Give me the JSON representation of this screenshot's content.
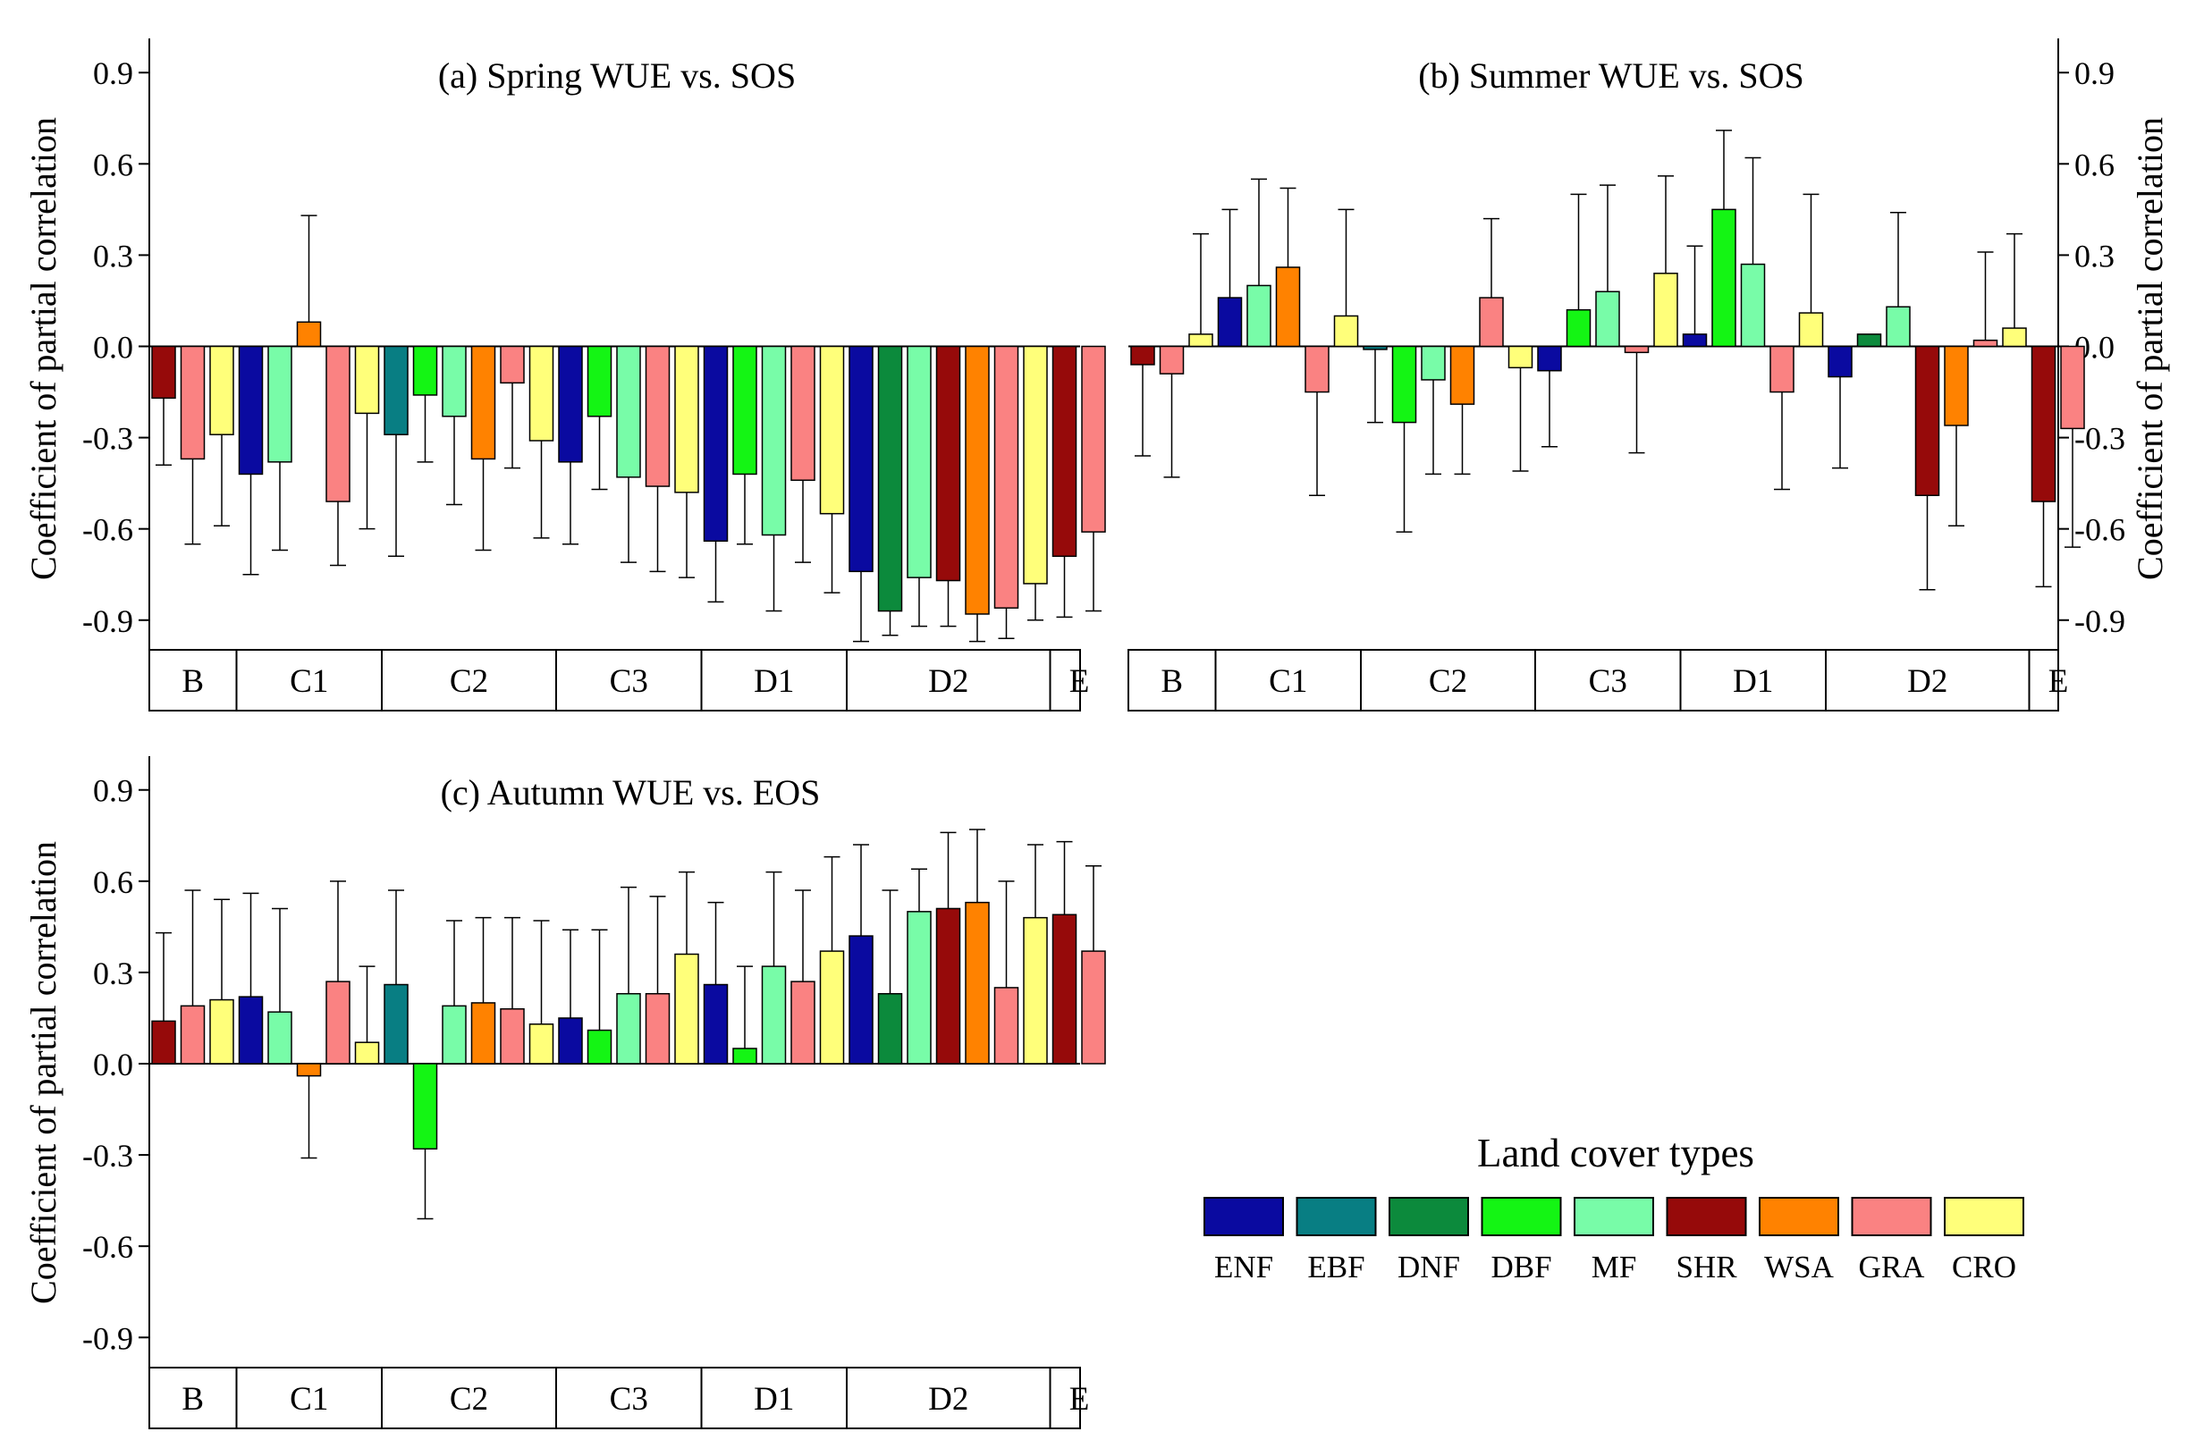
{
  "colors": {
    "ENF": "#0A0AA0",
    "EBF": "#087E83",
    "DNF": "#0C8A3C",
    "DBF": "#14F514",
    "MF": "#78FCA8",
    "SHR": "#960A0A",
    "WSA": "#FF8200",
    "GRA": "#FA8282",
    "CRO": "#FFFF7A"
  },
  "legend": {
    "title": "Land cover types",
    "items": [
      "ENF",
      "EBF",
      "DNF",
      "DBF",
      "MF",
      "SHR",
      "WSA",
      "GRA",
      "CRO"
    ]
  },
  "chart_data": [
    {
      "type": "bar",
      "title": "(a) Spring WUE vs. SOS",
      "ylabel": "Coefficient of partial correlation",
      "ylim": [
        -1.0,
        1.0
      ],
      "yticks": [
        "0.9",
        "0.6",
        "0.3",
        "0.0",
        "-0.3",
        "-0.6",
        "-0.9"
      ],
      "ytick_values": [
        0.9,
        0.6,
        0.3,
        0.0,
        -0.3,
        -0.6,
        -0.9
      ],
      "yaxis_side": "left",
      "groups": [
        {
          "label": "B",
          "bars": [
            {
              "type": "SHR",
              "value": -0.17,
              "err": 0.22
            },
            {
              "type": "GRA",
              "value": -0.37,
              "err": 0.28
            },
            {
              "type": "CRO",
              "value": -0.29,
              "err": 0.3
            }
          ]
        },
        {
          "label": "C1",
          "bars": [
            {
              "type": "ENF",
              "value": -0.42,
              "err": 0.33
            },
            {
              "type": "MF",
              "value": -0.38,
              "err": 0.29
            },
            {
              "type": "WSA",
              "value": 0.08,
              "err": 0.35
            },
            {
              "type": "GRA",
              "value": -0.51,
              "err": 0.21
            },
            {
              "type": "CRO",
              "value": -0.22,
              "err": 0.38
            }
          ]
        },
        {
          "label": "C2",
          "bars": [
            {
              "type": "EBF",
              "value": -0.29,
              "err": 0.4
            },
            {
              "type": "DBF",
              "value": -0.16,
              "err": 0.22
            },
            {
              "type": "MF",
              "value": -0.23,
              "err": 0.29
            },
            {
              "type": "WSA",
              "value": -0.37,
              "err": 0.3
            },
            {
              "type": "GRA",
              "value": -0.12,
              "err": 0.28
            },
            {
              "type": "CRO",
              "value": -0.31,
              "err": 0.32
            }
          ]
        },
        {
          "label": "C3",
          "bars": [
            {
              "type": "ENF",
              "value": -0.38,
              "err": 0.27
            },
            {
              "type": "DBF",
              "value": -0.23,
              "err": 0.24
            },
            {
              "type": "MF",
              "value": -0.43,
              "err": 0.28
            },
            {
              "type": "GRA",
              "value": -0.46,
              "err": 0.28
            },
            {
              "type": "CRO",
              "value": -0.48,
              "err": 0.28
            }
          ]
        },
        {
          "label": "D1",
          "bars": [
            {
              "type": "ENF",
              "value": -0.64,
              "err": 0.2
            },
            {
              "type": "DBF",
              "value": -0.42,
              "err": 0.23
            },
            {
              "type": "MF",
              "value": -0.62,
              "err": 0.25
            },
            {
              "type": "GRA",
              "value": -0.44,
              "err": 0.27
            },
            {
              "type": "CRO",
              "value": -0.55,
              "err": 0.26
            }
          ]
        },
        {
          "label": "D2",
          "bars": [
            {
              "type": "ENF",
              "value": -0.74,
              "err": 0.23
            },
            {
              "type": "DNF",
              "value": -0.87,
              "err": 0.08
            },
            {
              "type": "MF",
              "value": -0.76,
              "err": 0.16
            },
            {
              "type": "SHR",
              "value": -0.77,
              "err": 0.15
            },
            {
              "type": "WSA",
              "value": -0.88,
              "err": 0.09
            },
            {
              "type": "GRA",
              "value": -0.86,
              "err": 0.1
            },
            {
              "type": "CRO",
              "value": -0.78,
              "err": 0.12
            }
          ]
        },
        {
          "label": "E",
          "bars": [
            {
              "type": "SHR",
              "value": -0.69,
              "err": 0.2
            },
            {
              "type": "GRA",
              "value": -0.61,
              "err": 0.26
            }
          ]
        }
      ]
    },
    {
      "type": "bar",
      "title": "(b) Summer WUE vs. SOS",
      "ylabel": "Coefficient of partial correlation",
      "ylim": [
        -1.0,
        1.0
      ],
      "yticks": [
        "0.9",
        "0.6",
        "0.3",
        "0.0",
        "-0.3",
        "-0.6",
        "-0.9"
      ],
      "ytick_values": [
        0.9,
        0.6,
        0.3,
        0.0,
        -0.3,
        -0.6,
        -0.9
      ],
      "yaxis_side": "right",
      "groups": [
        {
          "label": "B",
          "bars": [
            {
              "type": "SHR",
              "value": -0.06,
              "err": 0.3
            },
            {
              "type": "GRA",
              "value": -0.09,
              "err": 0.34
            },
            {
              "type": "CRO",
              "value": 0.04,
              "err": 0.33
            }
          ]
        },
        {
          "label": "C1",
          "bars": [
            {
              "type": "ENF",
              "value": 0.16,
              "err": 0.29
            },
            {
              "type": "MF",
              "value": 0.2,
              "err": 0.35
            },
            {
              "type": "WSA",
              "value": 0.26,
              "err": 0.26
            },
            {
              "type": "GRA",
              "value": -0.15,
              "err": 0.34
            },
            {
              "type": "CRO",
              "value": 0.1,
              "err": 0.35
            }
          ]
        },
        {
          "label": "C2",
          "bars": [
            {
              "type": "EBF",
              "value": -0.01,
              "err": 0.24
            },
            {
              "type": "DBF",
              "value": -0.25,
              "err": 0.36
            },
            {
              "type": "MF",
              "value": -0.11,
              "err": 0.31
            },
            {
              "type": "WSA",
              "value": -0.19,
              "err": 0.23
            },
            {
              "type": "GRA",
              "value": 0.16,
              "err": 0.26
            },
            {
              "type": "CRO",
              "value": -0.07,
              "err": 0.34
            }
          ]
        },
        {
          "label": "C3",
          "bars": [
            {
              "type": "ENF",
              "value": -0.08,
              "err": 0.25
            },
            {
              "type": "DBF",
              "value": 0.12,
              "err": 0.38
            },
            {
              "type": "MF",
              "value": 0.18,
              "err": 0.35
            },
            {
              "type": "GRA",
              "value": -0.02,
              "err": 0.33
            },
            {
              "type": "CRO",
              "value": 0.24,
              "err": 0.32
            }
          ]
        },
        {
          "label": "D1",
          "bars": [
            {
              "type": "ENF",
              "value": 0.04,
              "err": 0.29
            },
            {
              "type": "DBF",
              "value": 0.45,
              "err": 0.26
            },
            {
              "type": "MF",
              "value": 0.27,
              "err": 0.35
            },
            {
              "type": "GRA",
              "value": -0.15,
              "err": 0.32
            },
            {
              "type": "CRO",
              "value": 0.11,
              "err": 0.39
            }
          ]
        },
        {
          "label": "D2",
          "bars": [
            {
              "type": "ENF",
              "value": -0.1,
              "err": 0.3
            },
            {
              "type": "DNF",
              "value": 0.04,
              "err": 0.0
            },
            {
              "type": "MF",
              "value": 0.13,
              "err": 0.31
            },
            {
              "type": "SHR",
              "value": -0.49,
              "err": 0.31
            },
            {
              "type": "WSA",
              "value": -0.26,
              "err": 0.33
            },
            {
              "type": "GRA",
              "value": 0.02,
              "err": 0.29
            },
            {
              "type": "CRO",
              "value": 0.06,
              "err": 0.31
            }
          ]
        },
        {
          "label": "E",
          "bars": [
            {
              "type": "SHR",
              "value": -0.51,
              "err": 0.28
            },
            {
              "type": "GRA",
              "value": -0.27,
              "err": 0.39
            }
          ]
        }
      ]
    },
    {
      "type": "bar",
      "title": "(c) Autumn WUE vs. EOS",
      "ylabel": "Coefficient of partial correlation",
      "ylim": [
        -1.0,
        1.0
      ],
      "yticks": [
        "0.9",
        "0.6",
        "0.3",
        "0.0",
        "-0.3",
        "-0.6",
        "-0.9"
      ],
      "ytick_values": [
        0.9,
        0.6,
        0.3,
        0.0,
        -0.3,
        -0.6,
        -0.9
      ],
      "yaxis_side": "left",
      "groups": [
        {
          "label": "B",
          "bars": [
            {
              "type": "SHR",
              "value": 0.14,
              "err": 0.29
            },
            {
              "type": "GRA",
              "value": 0.19,
              "err": 0.38
            },
            {
              "type": "CRO",
              "value": 0.21,
              "err": 0.33
            }
          ]
        },
        {
          "label": "C1",
          "bars": [
            {
              "type": "ENF",
              "value": 0.22,
              "err": 0.34
            },
            {
              "type": "MF",
              "value": 0.17,
              "err": 0.34
            },
            {
              "type": "WSA",
              "value": -0.04,
              "err": 0.27
            },
            {
              "type": "GRA",
              "value": 0.27,
              "err": 0.33
            },
            {
              "type": "CRO",
              "value": 0.07,
              "err": 0.25
            }
          ]
        },
        {
          "label": "C2",
          "bars": [
            {
              "type": "EBF",
              "value": 0.26,
              "err": 0.31
            },
            {
              "type": "DBF",
              "value": -0.28,
              "err": 0.23
            },
            {
              "type": "MF",
              "value": 0.19,
              "err": 0.28
            },
            {
              "type": "WSA",
              "value": 0.2,
              "err": 0.28
            },
            {
              "type": "GRA",
              "value": 0.18,
              "err": 0.3
            },
            {
              "type": "CRO",
              "value": 0.13,
              "err": 0.34
            }
          ]
        },
        {
          "label": "C3",
          "bars": [
            {
              "type": "ENF",
              "value": 0.15,
              "err": 0.29
            },
            {
              "type": "DBF",
              "value": 0.11,
              "err": 0.33
            },
            {
              "type": "MF",
              "value": 0.23,
              "err": 0.35
            },
            {
              "type": "GRA",
              "value": 0.23,
              "err": 0.32
            },
            {
              "type": "CRO",
              "value": 0.36,
              "err": 0.27
            }
          ]
        },
        {
          "label": "D1",
          "bars": [
            {
              "type": "ENF",
              "value": 0.26,
              "err": 0.27
            },
            {
              "type": "DBF",
              "value": 0.05,
              "err": 0.27
            },
            {
              "type": "MF",
              "value": 0.32,
              "err": 0.31
            },
            {
              "type": "GRA",
              "value": 0.27,
              "err": 0.3
            },
            {
              "type": "CRO",
              "value": 0.37,
              "err": 0.31
            }
          ]
        },
        {
          "label": "D2",
          "bars": [
            {
              "type": "ENF",
              "value": 0.42,
              "err": 0.3
            },
            {
              "type": "DNF",
              "value": 0.23,
              "err": 0.34
            },
            {
              "type": "MF",
              "value": 0.5,
              "err": 0.14
            },
            {
              "type": "SHR",
              "value": 0.51,
              "err": 0.25
            },
            {
              "type": "WSA",
              "value": 0.53,
              "err": 0.24
            },
            {
              "type": "GRA",
              "value": 0.25,
              "err": 0.35
            },
            {
              "type": "CRO",
              "value": 0.48,
              "err": 0.24
            }
          ]
        },
        {
          "label": "E",
          "bars": [
            {
              "type": "SHR",
              "value": 0.49,
              "err": 0.24
            },
            {
              "type": "GRA",
              "value": 0.37,
              "err": 0.28
            }
          ]
        }
      ]
    }
  ]
}
